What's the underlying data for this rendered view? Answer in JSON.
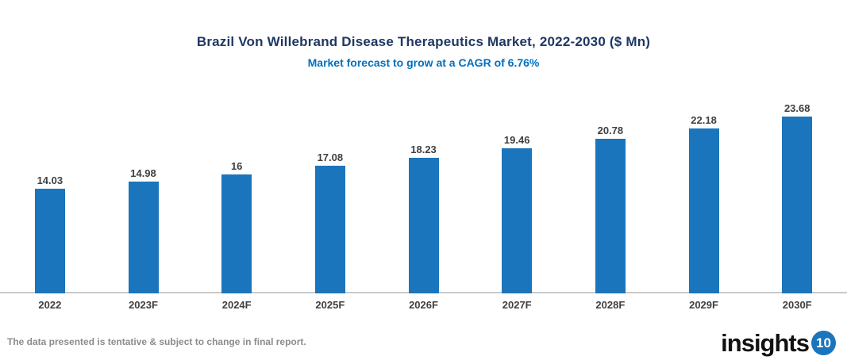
{
  "header": {
    "title": "Brazil Von Willebrand Disease Therapeutics Market, 2022-2030 ($ Mn)",
    "subtitle": "Market forecast to grow at a CAGR of 6.76%"
  },
  "chart_data": {
    "type": "bar",
    "categories": [
      "2022",
      "2023F",
      "2024F",
      "2025F",
      "2026F",
      "2027F",
      "2028F",
      "2029F",
      "2030F"
    ],
    "values": [
      14.03,
      14.98,
      16,
      17.08,
      18.23,
      19.46,
      20.78,
      22.18,
      23.68
    ],
    "value_labels": [
      "14.03",
      "14.98",
      "16",
      "17.08",
      "18.23",
      "19.46",
      "20.78",
      "22.18",
      "23.68"
    ],
    "title": "Brazil Von Willebrand Disease Therapeutics Market, 2022-2030 ($ Mn)",
    "subtitle": "Market forecast to grow at a CAGR of 6.76%",
    "xlabel": "",
    "ylabel": "",
    "ylim": [
      0,
      25
    ],
    "grid": false,
    "legend": false,
    "data_labels_position": "above-bars"
  },
  "colors": {
    "bar": "#1b75bc",
    "title": "#1f3864",
    "subtitle": "#0070c0",
    "data_label": "#404040",
    "axis_line": "#c9c9c9",
    "disclaimer": "#8c8c8c",
    "logo_badge": "#1b75bc"
  },
  "footer": {
    "disclaimer": "The data presented is tentative & subject to change in final report.",
    "logo_text": "insights",
    "logo_badge_text": "10"
  }
}
